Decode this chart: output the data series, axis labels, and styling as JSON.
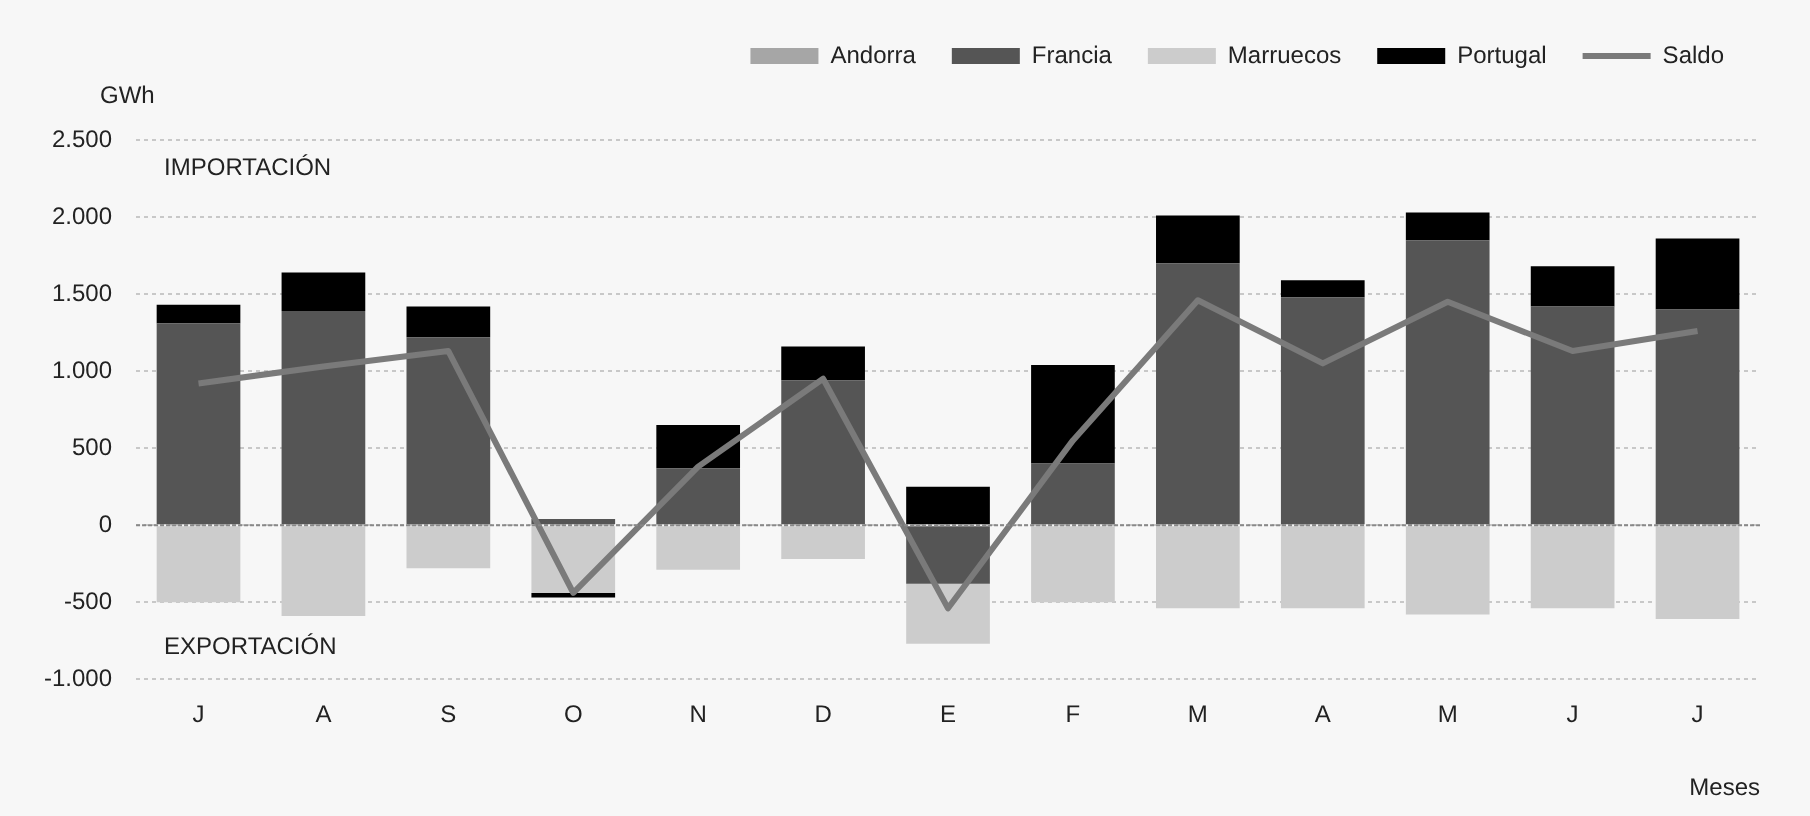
{
  "chart_data": {
    "type": "bar",
    "stacked": true,
    "ylabel": "GWh",
    "xlabel": "Meses",
    "legend": "top right",
    "grid": "y",
    "annotations": [
      "IMPORTACIÓN",
      "EXPORTACIÓN"
    ],
    "ref_lines": [
      {
        "axis": "y",
        "value": 0,
        "color": "#888888",
        "line_style": "dotted"
      }
    ],
    "categories": [
      "J",
      "A",
      "S",
      "O",
      "N",
      "D",
      "E",
      "F",
      "M",
      "A",
      "M",
      "J",
      "J"
    ],
    "ylim": [
      -1000,
      2500
    ],
    "yticks": [
      {
        "value": -1000,
        "label": "-1.000"
      },
      -500,
      0,
      500,
      {
        "value": 1000,
        "label": "1.000"
      },
      {
        "value": 1500,
        "label": "1.500"
      },
      {
        "value": 2000,
        "label": "2.000"
      },
      {
        "value": 2500,
        "label": "2.500"
      }
    ],
    "series": [
      {
        "name": "Andorra",
        "color": "#a6a6a6",
        "values": [
          null,
          null,
          null,
          null,
          null,
          null,
          null,
          null,
          null,
          null,
          null,
          null,
          null
        ]
      },
      {
        "name": "Francia",
        "color": "#555555",
        "values": [
          1310,
          1390,
          1220,
          40,
          370,
          940,
          -380,
          400,
          1700,
          1480,
          1850,
          1420,
          1400
        ]
      },
      {
        "name": "Marruecos",
        "color": "#cccccc",
        "values": [
          -500,
          -590,
          -280,
          -440,
          -290,
          -220,
          -390,
          -500,
          -540,
          -540,
          -580,
          -540,
          -610
        ]
      },
      {
        "name": "Portugal",
        "color": "#000000",
        "values": [
          120,
          250,
          200,
          -30,
          280,
          220,
          250,
          640,
          310,
          110,
          180,
          260,
          460
        ]
      },
      {
        "name": "Saldo",
        "type": "line",
        "color": "#7a7a7a",
        "values": [
          920,
          1030,
          1130,
          -440,
          380,
          950,
          -540,
          550,
          1460,
          1050,
          1450,
          1130,
          1260
        ]
      }
    ]
  }
}
